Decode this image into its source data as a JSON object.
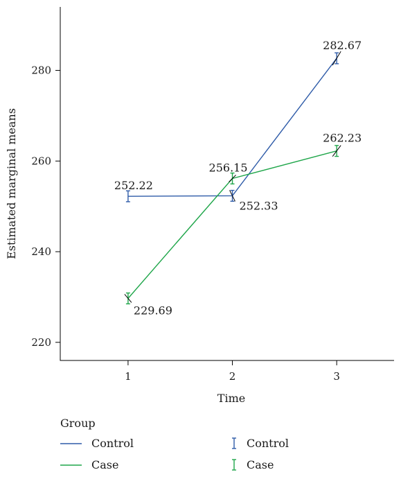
{
  "chart_data": {
    "type": "line",
    "xlabel": "Time",
    "ylabel": "Estimated marginal means",
    "x": [
      1,
      2,
      3
    ],
    "xticks": [
      "1",
      "2",
      "3"
    ],
    "xlim": [
      0.35,
      3.55
    ],
    "yticks": [
      "220",
      "240",
      "260",
      "280"
    ],
    "ylim": [
      216,
      294
    ],
    "series": [
      {
        "name": "Control",
        "color": "#2e5ba8",
        "values": [
          252.22,
          252.33,
          282.67
        ],
        "errors": [
          1.2,
          1.2,
          1.2
        ],
        "labels": [
          "252.22",
          "252.33",
          "282.67"
        ]
      },
      {
        "name": "Case",
        "color": "#1fa64a",
        "values": [
          229.69,
          256.15,
          262.23
        ],
        "errors": [
          1.2,
          1.2,
          1.2
        ],
        "labels": [
          "229.69",
          "256.15",
          "262.23"
        ]
      }
    ],
    "legend": {
      "title": "Group",
      "placement": "bottom",
      "line_entries": [
        "Control",
        "Case"
      ],
      "errorbar_entries": [
        "Control",
        "Case"
      ]
    }
  }
}
